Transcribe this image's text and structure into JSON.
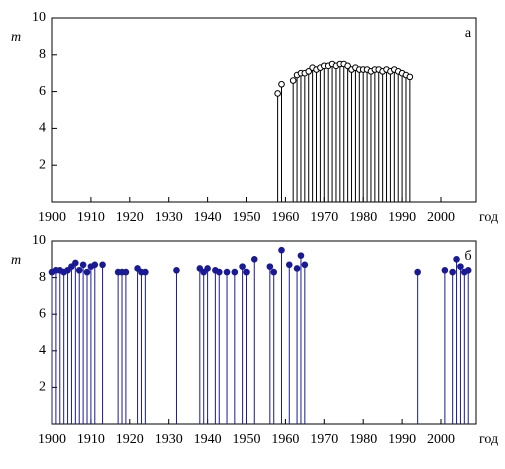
{
  "chart_data": [
    {
      "type": "stem",
      "panel_label": "а",
      "y_label": "m",
      "x_label": "год",
      "xlim": [
        1900,
        2009
      ],
      "ylim": [
        0,
        10
      ],
      "xticks": [
        1900,
        1910,
        1920,
        1930,
        1940,
        1950,
        1960,
        1970,
        1980,
        1990,
        2000
      ],
      "yticks": [
        2,
        4,
        6,
        8,
        10
      ],
      "color": "#000000",
      "marker_fill": "#ffffff",
      "x": [
        1958,
        1959,
        1962,
        1963,
        1964,
        1965,
        1966,
        1967,
        1968,
        1969,
        1970,
        1971,
        1972,
        1973,
        1974,
        1975,
        1976,
        1977,
        1978,
        1979,
        1980,
        1981,
        1982,
        1983,
        1984,
        1985,
        1986,
        1987,
        1988,
        1989,
        1990,
        1991,
        1992
      ],
      "values": [
        5.9,
        6.4,
        6.6,
        6.9,
        7.0,
        7.0,
        7.1,
        7.3,
        7.2,
        7.3,
        7.4,
        7.4,
        7.5,
        7.4,
        7.5,
        7.5,
        7.4,
        7.2,
        7.3,
        7.2,
        7.2,
        7.2,
        7.1,
        7.2,
        7.2,
        7.1,
        7.2,
        7.1,
        7.2,
        7.1,
        7.0,
        6.9,
        6.8
      ]
    },
    {
      "type": "stem",
      "panel_label": "б",
      "y_label": "m",
      "x_label": "год",
      "xlim": [
        1900,
        2009
      ],
      "ylim": [
        0,
        10
      ],
      "xticks": [
        1900,
        1910,
        1920,
        1930,
        1940,
        1950,
        1960,
        1970,
        1980,
        1990,
        2000
      ],
      "yticks": [
        2,
        4,
        6,
        8,
        10
      ],
      "color": "#1a1a96",
      "marker_fill": "#1a1a96",
      "x": [
        1900,
        1901,
        1902,
        1903,
        1904,
        1905,
        1906,
        1907,
        1908,
        1909,
        1910,
        1911,
        1913,
        1917,
        1918,
        1919,
        1922,
        1923,
        1924,
        1932,
        1938,
        1939,
        1940,
        1942,
        1943,
        1945,
        1947,
        1949,
        1950,
        1952,
        1956,
        1957,
        1959,
        1961,
        1963,
        1964,
        1965,
        1994,
        2001,
        2003,
        2004,
        2005,
        2006,
        2007
      ],
      "values": [
        8.3,
        8.4,
        8.4,
        8.3,
        8.4,
        8.6,
        8.8,
        8.4,
        8.7,
        8.3,
        8.6,
        8.7,
        8.7,
        8.3,
        8.3,
        8.3,
        8.5,
        8.3,
        8.3,
        8.4,
        8.5,
        8.3,
        8.5,
        8.4,
        8.3,
        8.3,
        8.3,
        8.6,
        8.3,
        9.0,
        8.6,
        8.3,
        9.5,
        8.7,
        8.5,
        9.2,
        8.7,
        8.3,
        8.4,
        8.3,
        9.0,
        8.6,
        8.3,
        8.4
      ]
    }
  ]
}
